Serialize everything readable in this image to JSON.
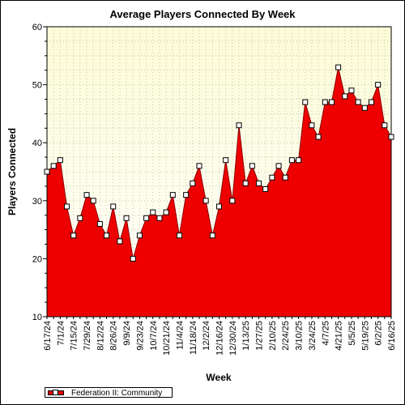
{
  "chart_data": {
    "type": "area",
    "title": "Average Players Connected By Week",
    "xlabel": "Week",
    "ylabel": "Players Connected",
    "ylim": [
      10,
      60
    ],
    "yticks": [
      10,
      20,
      30,
      40,
      50,
      60
    ],
    "grid": true,
    "legend": "bottom-left",
    "x_tick_labels": [
      "6/17/24",
      "7/1/24",
      "7/15/24",
      "7/29/24",
      "8/12/24",
      "8/26/24",
      "9/9/24",
      "9/23/24",
      "10/7/24",
      "10/21/24",
      "11/4/24",
      "11/18/24",
      "12/2/24",
      "12/16/24",
      "12/30/24",
      "1/13/25",
      "1/27/25",
      "2/10/25",
      "2/24/25",
      "3/10/25",
      "3/24/25",
      "4/7/25",
      "4/21/25",
      "5/5/25",
      "5/19/25",
      "6/2/25",
      "6/16/25"
    ],
    "series": [
      {
        "name": "Federation II: Community",
        "color": "#ee0000",
        "values": [
          35,
          36,
          37,
          29,
          24,
          27,
          31,
          30,
          26,
          24,
          29,
          23,
          27,
          20,
          24,
          27,
          28,
          27,
          28,
          31,
          24,
          31,
          33,
          36,
          30,
          24,
          29,
          37,
          30,
          43,
          33,
          36,
          33,
          32,
          34,
          36,
          34,
          37,
          37,
          47,
          43,
          41,
          47,
          47,
          53,
          48,
          49,
          47,
          46,
          47,
          50,
          43,
          41
        ]
      }
    ]
  }
}
